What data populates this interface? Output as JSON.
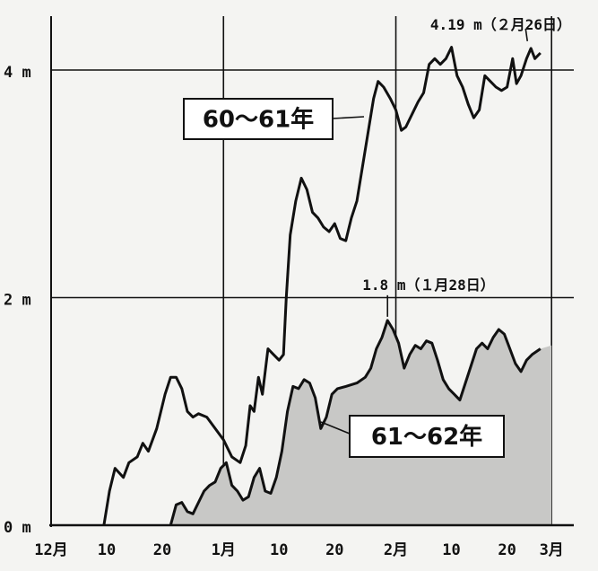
{
  "chart_data": {
    "type": "line",
    "title": "",
    "xlabel": "",
    "ylabel": "",
    "ylim": [
      0,
      4.6
    ],
    "y_ticks": [
      {
        "value": 0,
        "label": "0 m"
      },
      {
        "value": 2,
        "label": "2 m"
      },
      {
        "value": 4,
        "label": "4 m"
      }
    ],
    "x_ticks": [
      {
        "day": 0,
        "label": "12月"
      },
      {
        "day": 10,
        "label": "10"
      },
      {
        "day": 20,
        "label": "20"
      },
      {
        "day": 31,
        "label": "1月"
      },
      {
        "day": 41,
        "label": "10"
      },
      {
        "day": 51,
        "label": "20"
      },
      {
        "day": 62,
        "label": "2月"
      },
      {
        "day": 72,
        "label": "10"
      },
      {
        "day": 82,
        "label": "20"
      },
      {
        "day": 90,
        "label": "3月"
      }
    ],
    "month_lines": [
      31,
      62,
      90
    ],
    "series": [
      {
        "name": "60〜61年",
        "filled": false,
        "points": [
          [
            9.5,
            0
          ],
          [
            10.5,
            0.3
          ],
          [
            11.5,
            0.5
          ],
          [
            13,
            0.42
          ],
          [
            14,
            0.55
          ],
          [
            15.5,
            0.6
          ],
          [
            16.5,
            0.72
          ],
          [
            17.5,
            0.65
          ],
          [
            19,
            0.85
          ],
          [
            20.5,
            1.15
          ],
          [
            21.5,
            1.3
          ],
          [
            22.5,
            1.3
          ],
          [
            23.5,
            1.2
          ],
          [
            24.5,
            1.0
          ],
          [
            25.5,
            0.95
          ],
          [
            26.5,
            0.98
          ],
          [
            28,
            0.95
          ],
          [
            29.5,
            0.85
          ],
          [
            31,
            0.75
          ],
          [
            32.5,
            0.6
          ],
          [
            34,
            0.55
          ],
          [
            35,
            0.7
          ],
          [
            35.8,
            1.05
          ],
          [
            36.5,
            1.0
          ],
          [
            37.3,
            1.3
          ],
          [
            38,
            1.15
          ],
          [
            39,
            1.55
          ],
          [
            40,
            1.5
          ],
          [
            41,
            1.45
          ],
          [
            41.8,
            1.5
          ],
          [
            42.3,
            2.0
          ],
          [
            43,
            2.55
          ],
          [
            44,
            2.85
          ],
          [
            45,
            3.05
          ],
          [
            46,
            2.95
          ],
          [
            47,
            2.75
          ],
          [
            48,
            2.7
          ],
          [
            49,
            2.62
          ],
          [
            50,
            2.58
          ],
          [
            51,
            2.65
          ],
          [
            52,
            2.52
          ],
          [
            53,
            2.5
          ],
          [
            54,
            2.7
          ],
          [
            55,
            2.85
          ],
          [
            56,
            3.15
          ],
          [
            57,
            3.45
          ],
          [
            58,
            3.75
          ],
          [
            58.8,
            3.9
          ],
          [
            59.8,
            3.85
          ],
          [
            61,
            3.75
          ],
          [
            62,
            3.65
          ],
          [
            63,
            3.47
          ],
          [
            63.8,
            3.5
          ],
          [
            65,
            3.62
          ],
          [
            66,
            3.72
          ],
          [
            67,
            3.8
          ],
          [
            68,
            4.05
          ],
          [
            69,
            4.1
          ],
          [
            70,
            4.05
          ],
          [
            71,
            4.1
          ],
          [
            72,
            4.2
          ],
          [
            73,
            3.95
          ],
          [
            74,
            3.85
          ],
          [
            75,
            3.7
          ],
          [
            76,
            3.58
          ],
          [
            77,
            3.65
          ],
          [
            78,
            3.95
          ],
          [
            79,
            3.9
          ],
          [
            80,
            3.85
          ],
          [
            81,
            3.82
          ],
          [
            82,
            3.85
          ],
          [
            83,
            4.1
          ],
          [
            83.7,
            3.88
          ],
          [
            84.5,
            3.95
          ],
          [
            85.5,
            4.1
          ],
          [
            86.3,
            4.19
          ],
          [
            87,
            4.1
          ],
          [
            88,
            4.15
          ]
        ],
        "annotation": {
          "day": 86.3,
          "value": 4.19,
          "label": "4.19 m（２月26日）"
        }
      },
      {
        "name": "61〜62年",
        "filled": true,
        "points": [
          [
            21.5,
            0
          ],
          [
            22.5,
            0.18
          ],
          [
            23.5,
            0.2
          ],
          [
            24.5,
            0.12
          ],
          [
            25.5,
            0.1
          ],
          [
            26.5,
            0.2
          ],
          [
            27.5,
            0.3
          ],
          [
            28.5,
            0.35
          ],
          [
            29.5,
            0.38
          ],
          [
            30.5,
            0.5
          ],
          [
            31.5,
            0.55
          ],
          [
            32.5,
            0.35
          ],
          [
            33.5,
            0.3
          ],
          [
            34.5,
            0.22
          ],
          [
            35.5,
            0.25
          ],
          [
            36.5,
            0.42
          ],
          [
            37.5,
            0.5
          ],
          [
            38.5,
            0.3
          ],
          [
            39.5,
            0.28
          ],
          [
            40.5,
            0.42
          ],
          [
            41.5,
            0.65
          ],
          [
            42.5,
            1.0
          ],
          [
            43.5,
            1.22
          ],
          [
            44.5,
            1.2
          ],
          [
            45.5,
            1.28
          ],
          [
            46.5,
            1.25
          ],
          [
            47.5,
            1.12
          ],
          [
            48.5,
            0.85
          ],
          [
            49.5,
            0.95
          ],
          [
            50.5,
            1.15
          ],
          [
            51.5,
            1.2
          ],
          [
            53,
            1.22
          ],
          [
            55,
            1.25
          ],
          [
            56.5,
            1.3
          ],
          [
            57.5,
            1.38
          ],
          [
            58.5,
            1.55
          ],
          [
            59.5,
            1.65
          ],
          [
            60.5,
            1.8
          ],
          [
            61.5,
            1.72
          ],
          [
            62.5,
            1.6
          ],
          [
            63.5,
            1.38
          ],
          [
            64.5,
            1.5
          ],
          [
            65.5,
            1.58
          ],
          [
            66.5,
            1.55
          ],
          [
            67.5,
            1.62
          ],
          [
            68.5,
            1.6
          ],
          [
            69.5,
            1.45
          ],
          [
            70.5,
            1.28
          ],
          [
            71.5,
            1.2
          ],
          [
            72.5,
            1.15
          ],
          [
            73.5,
            1.1
          ],
          [
            74.5,
            1.25
          ],
          [
            75.5,
            1.4
          ],
          [
            76.5,
            1.55
          ],
          [
            77.5,
            1.6
          ],
          [
            78.5,
            1.55
          ],
          [
            79.5,
            1.65
          ],
          [
            80.5,
            1.72
          ],
          [
            81.5,
            1.68
          ],
          [
            82.5,
            1.55
          ],
          [
            83.5,
            1.42
          ],
          [
            84.5,
            1.35
          ],
          [
            85.5,
            1.45
          ],
          [
            86.5,
            1.5
          ],
          [
            88,
            1.55
          ],
          [
            90,
            1.58
          ]
        ],
        "annotation": {
          "day": 60.5,
          "value": 1.8,
          "label": "1.8 m（１月28日）"
        }
      }
    ],
    "labels": [
      {
        "series_index": 0,
        "text": "60〜61年"
      },
      {
        "series_index": 1,
        "text": "61〜62年"
      }
    ]
  }
}
